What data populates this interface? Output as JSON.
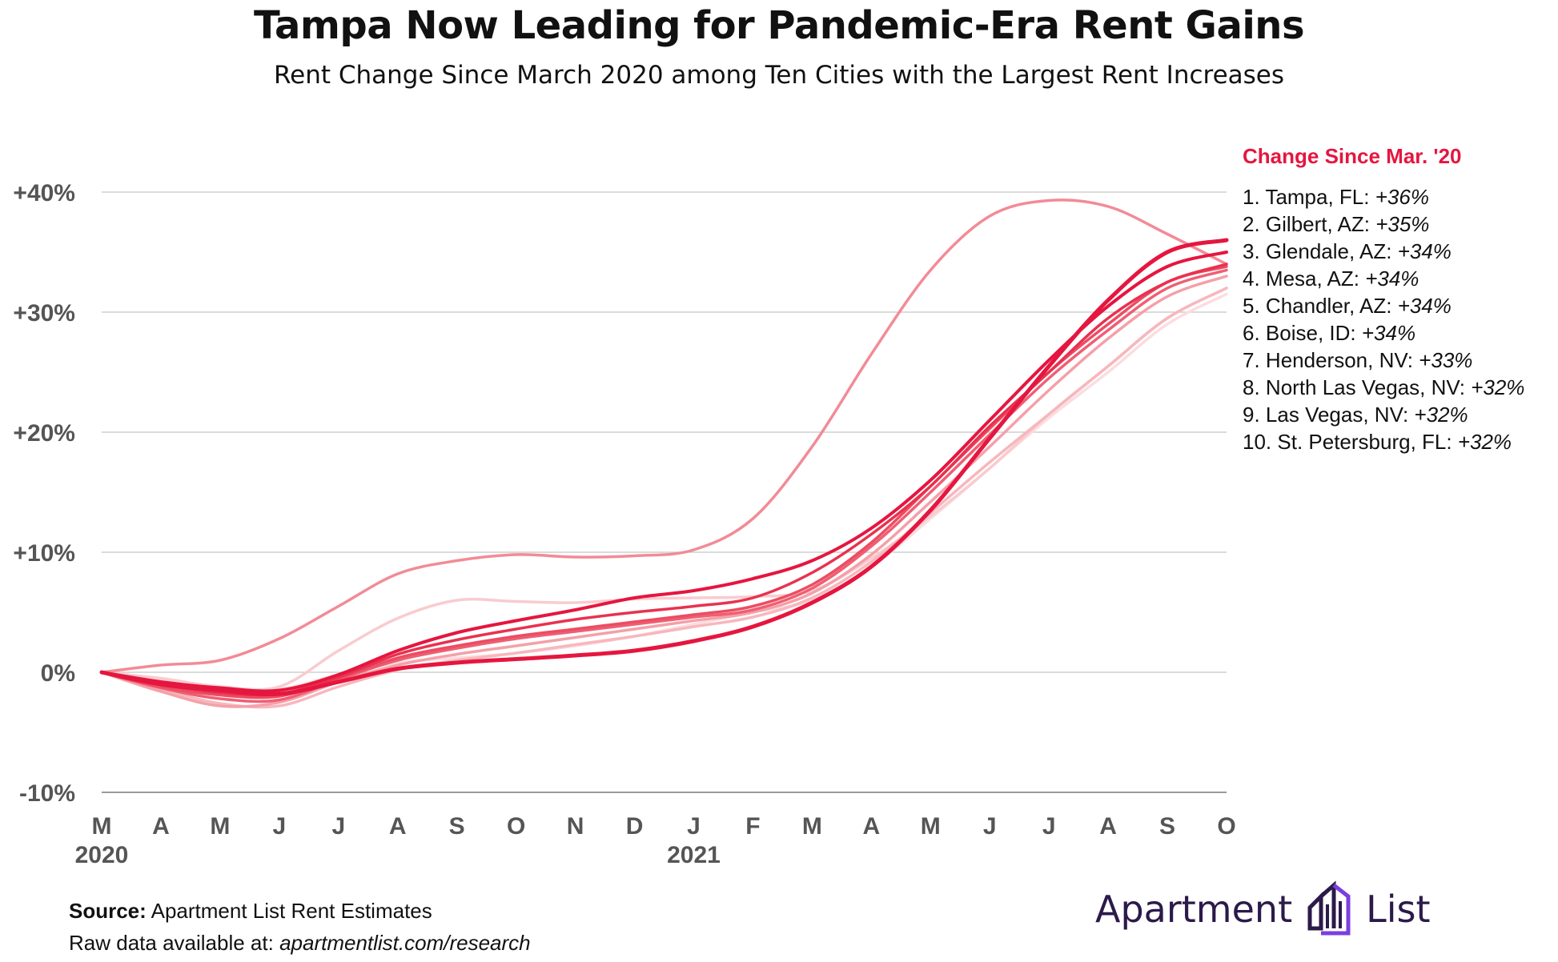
{
  "header": {
    "title": "Tampa Now Leading for Pandemic-Era Rent Gains",
    "subtitle": "Rent Change Since March 2020 among Ten Cities with the Largest Rent Increases"
  },
  "legend": {
    "title": "Change Since Mar. '20",
    "items": [
      {
        "rank": "1.",
        "city": "Tampa, FL:",
        "change": "+36%"
      },
      {
        "rank": "2.",
        "city": "Gilbert, AZ:",
        "change": "+35%"
      },
      {
        "rank": "3.",
        "city": "Glendale, AZ:",
        "change": "+34%"
      },
      {
        "rank": "4.",
        "city": "Mesa, AZ:",
        "change": "+34%"
      },
      {
        "rank": "5.",
        "city": "Chandler, AZ:",
        "change": "+34%"
      },
      {
        "rank": "6.",
        "city": "Boise, ID:",
        "change": "+34%"
      },
      {
        "rank": "7.",
        "city": "Henderson, NV:",
        "change": "+33%"
      },
      {
        "rank": "8.",
        "city": "North Las Vegas, NV:",
        "change": "+32%"
      },
      {
        "rank": "9.",
        "city": "Las Vegas, NV:",
        "change": "+32%"
      },
      {
        "rank": "10.",
        "city": "St. Petersburg, FL:",
        "change": "+32%"
      }
    ]
  },
  "footer": {
    "source_label": "Source:",
    "source_text": "Apartment List Rent Estimates",
    "raw_label": "Raw data available at:",
    "raw_url": "apartmentlist.com/research",
    "logo_left": "Apartment",
    "logo_right": "List"
  },
  "colors": {
    "accent": "#e5163f",
    "grid": "#cfcfcf",
    "axis_text": "#555555",
    "logo": "#2b1a4a"
  },
  "chart_data": {
    "type": "line",
    "x": [
      "M",
      "A",
      "M",
      "J",
      "J",
      "A",
      "S",
      "O",
      "N",
      "D",
      "J",
      "F",
      "M",
      "A",
      "M",
      "J",
      "J",
      "A",
      "S",
      "O"
    ],
    "year_labels": [
      {
        "index": 0,
        "label": "2020"
      },
      {
        "index": 10,
        "label": "2021"
      }
    ],
    "ylim": [
      -10,
      40
    ],
    "yticks": [
      {
        "value": 40,
        "label": "+40%"
      },
      {
        "value": 30,
        "label": "+30%"
      },
      {
        "value": 20,
        "label": "+20%"
      },
      {
        "value": 10,
        "label": "+10%"
      },
      {
        "value": 0,
        "label": "0%"
      },
      {
        "value": -10,
        "label": "-10%"
      }
    ],
    "grid": true,
    "legend_position": "right",
    "series": [
      {
        "name": "Tampa, FL",
        "color": "#e5163f",
        "width": 5,
        "values": [
          0,
          -1,
          -1.5,
          -1.8,
          -0.8,
          0.3,
          0.8,
          1.1,
          1.4,
          1.8,
          2.6,
          3.8,
          5.8,
          8.8,
          13.5,
          19.5,
          25.5,
          31,
          35,
          36
        ]
      },
      {
        "name": "Gilbert, AZ",
        "color": "#e5163f",
        "width": 4,
        "values": [
          0,
          -0.8,
          -1.3,
          -1.5,
          -0.2,
          1.8,
          3.3,
          4.3,
          5.2,
          6.2,
          6.8,
          7.8,
          9.3,
          12,
          16,
          21,
          26,
          30.5,
          33.8,
          35
        ]
      },
      {
        "name": "Glendale, AZ",
        "color": "#e8324f",
        "width": 3.5,
        "values": [
          0,
          -1,
          -1.7,
          -1.8,
          -0.4,
          1.5,
          2.7,
          3.6,
          4.4,
          5,
          5.5,
          6.2,
          8.3,
          11.5,
          15.5,
          20.5,
          25,
          29.5,
          32.5,
          34
        ]
      },
      {
        "name": "Mesa, AZ",
        "color": "#ec4d63",
        "width": 3.5,
        "values": [
          0,
          -1.2,
          -1.9,
          -2,
          -0.5,
          1.2,
          2.2,
          3,
          3.6,
          4.2,
          4.8,
          5.5,
          7.3,
          10.8,
          15.5,
          20.3,
          25,
          29,
          32.5,
          33.8
        ]
      },
      {
        "name": "Chandler, AZ",
        "color": "#ef5e72",
        "width": 3.5,
        "values": [
          0,
          -1.3,
          -2.2,
          -2.3,
          -0.6,
          1,
          2,
          2.8,
          3.4,
          4,
          4.6,
          5.2,
          7,
          10.5,
          15,
          19.8,
          24.5,
          28.5,
          32,
          33.5
        ]
      },
      {
        "name": "Boise, ID",
        "color": "#f28b96",
        "width": 3.5,
        "values": [
          0,
          0.6,
          1,
          2.8,
          5.5,
          8.2,
          9.3,
          9.8,
          9.6,
          9.7,
          10.2,
          12.8,
          18.8,
          26.5,
          33.5,
          38,
          39.3,
          38.8,
          36.5,
          34
        ]
      },
      {
        "name": "Henderson, NV",
        "color": "#f4a0a8",
        "width": 3.5,
        "values": [
          0,
          -1.6,
          -2.8,
          -2.5,
          -0.8,
          0.6,
          1.5,
          2.2,
          2.9,
          3.6,
          4.3,
          5,
          6.6,
          9.8,
          14.2,
          18.8,
          23.5,
          27.8,
          31.3,
          33
        ]
      },
      {
        "name": "North Las Vegas, NV",
        "color": "#f7b7bd",
        "width": 3.5,
        "values": [
          0,
          -1.4,
          -2.6,
          -2.8,
          -1.2,
          0.2,
          1,
          1.6,
          2.3,
          3,
          3.8,
          4.6,
          6.2,
          9.2,
          13.3,
          17.5,
          21.5,
          25.5,
          29.5,
          32
        ]
      },
      {
        "name": "Las Vegas, NV",
        "color": "#f9cbcf",
        "width": 3.5,
        "values": [
          0,
          -0.5,
          -1.2,
          -1.2,
          1.8,
          4.5,
          6,
          5.9,
          5.8,
          6.1,
          6.2,
          6.3,
          6.8,
          9.5,
          13,
          17,
          21.5,
          25.5,
          29.5,
          32
        ]
      },
      {
        "name": "St. Petersburg, FL",
        "color": "#fbdde0",
        "width": 3.5,
        "values": [
          0,
          -0.6,
          -1.2,
          -1.4,
          -0.2,
          0.8,
          1.2,
          1.6,
          2.2,
          3,
          4,
          5,
          6,
          8.8,
          12.8,
          17,
          21.2,
          25,
          29,
          31.5
        ]
      }
    ]
  }
}
